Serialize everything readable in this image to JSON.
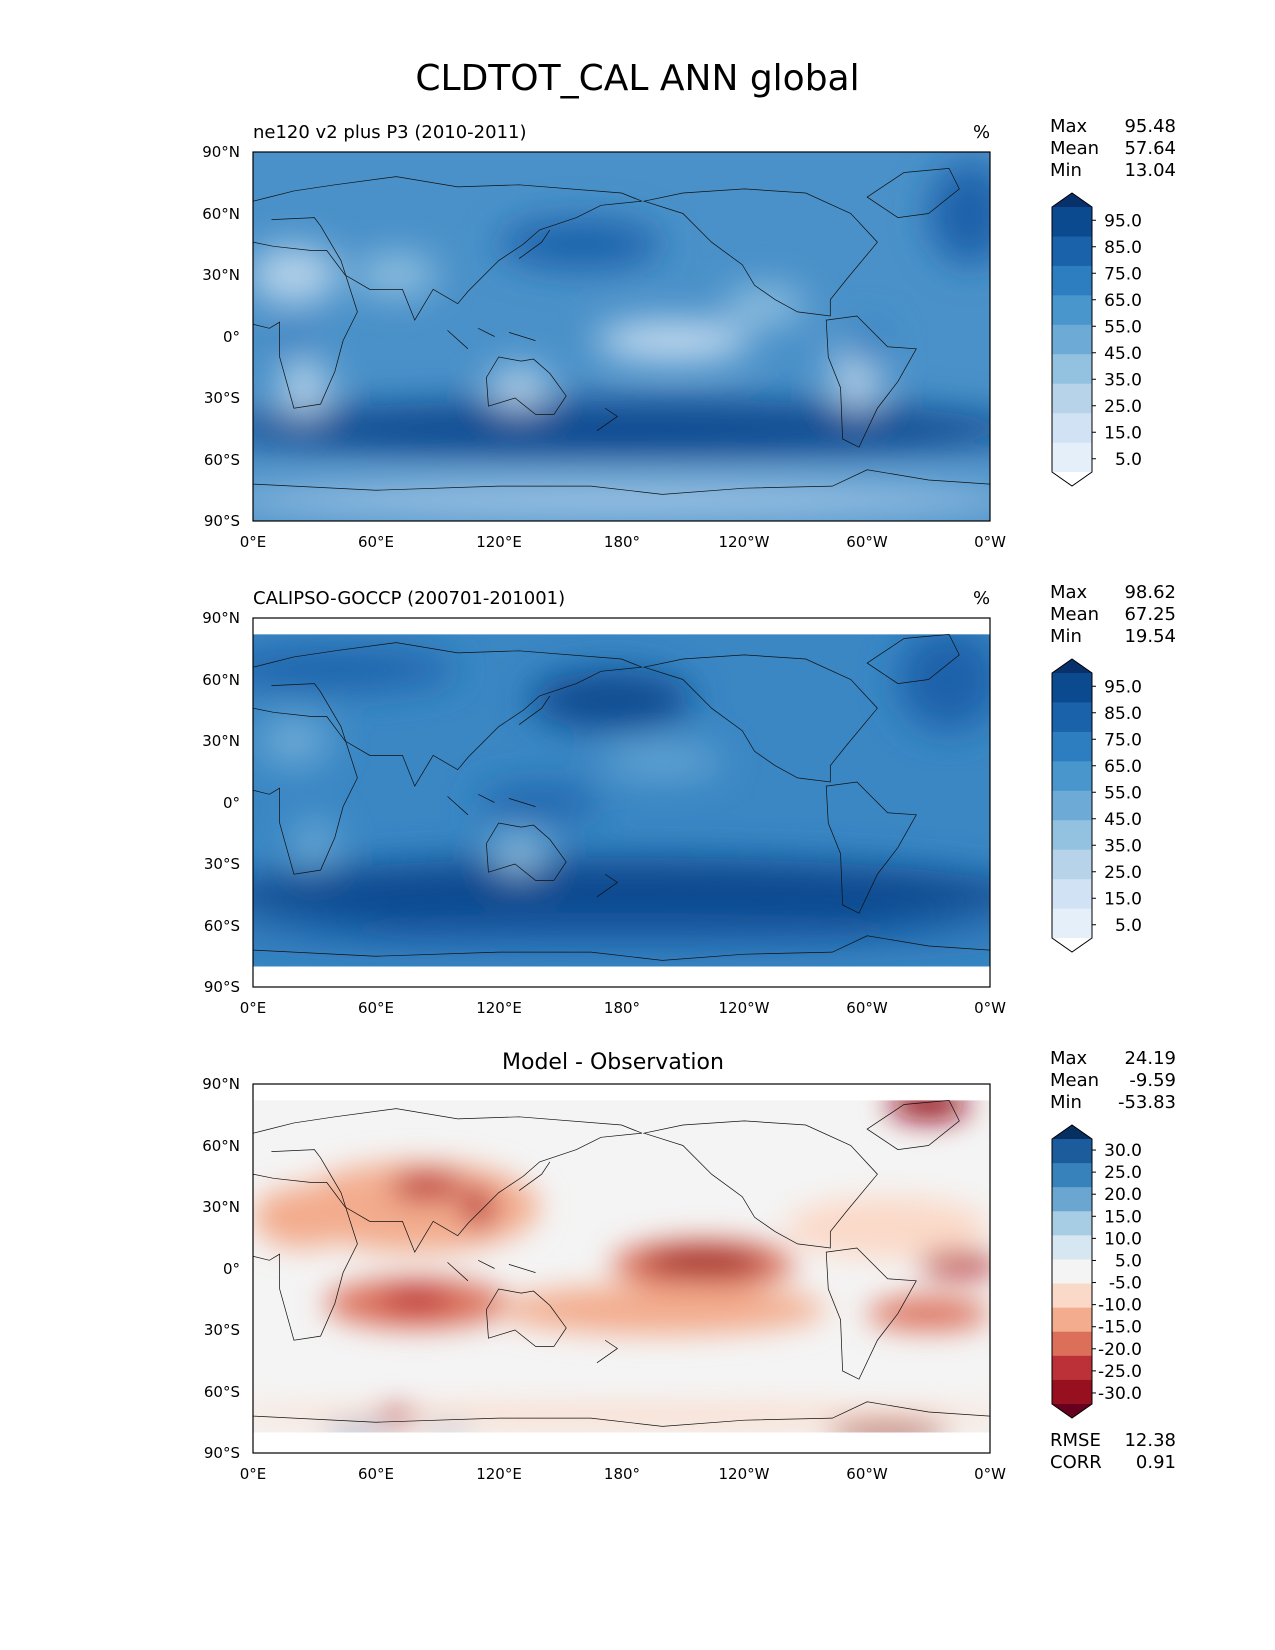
{
  "title": "CLDTOT_CAL ANN global",
  "lat_ticks": [
    "90°N",
    "60°N",
    "30°N",
    "0°",
    "30°S",
    "60°S",
    "90°S"
  ],
  "lon_ticks": [
    "0°E",
    "60°E",
    "120°E",
    "180°",
    "120°W",
    "60°W",
    "0°W"
  ],
  "panels": [
    {
      "id": "model",
      "title": "ne120 v2 plus P3 (2010-2011)",
      "units": "%",
      "stats": {
        "max_label": "Max",
        "max": "95.48",
        "mean_label": "Mean",
        "mean": "57.64",
        "min_label": "Min",
        "min": "13.04"
      },
      "colorbar_labels": [
        "95.0",
        "85.0",
        "75.0",
        "65.0",
        "55.0",
        "45.0",
        "35.0",
        "25.0",
        "15.0",
        "5.0"
      ],
      "colorbar_colors": [
        "#08306b",
        "#0b4a8f",
        "#1a62aa",
        "#2d7ec0",
        "#4896cb",
        "#6daad6",
        "#93c1e0",
        "#b6d3ea",
        "#d0e2f3",
        "#e5eff9",
        "#ffffff"
      ]
    },
    {
      "id": "obs",
      "title": "CALIPSO-GOCCP (200701-201001)",
      "units": "%",
      "stats": {
        "max_label": "Max",
        "max": "98.62",
        "mean_label": "Mean",
        "mean": "67.25",
        "min_label": "Min",
        "min": "19.54"
      },
      "colorbar_labels": [
        "95.0",
        "85.0",
        "75.0",
        "65.0",
        "55.0",
        "45.0",
        "35.0",
        "25.0",
        "15.0",
        "5.0"
      ],
      "colorbar_colors": [
        "#08306b",
        "#0b4a8f",
        "#1a62aa",
        "#2d7ec0",
        "#4896cb",
        "#6daad6",
        "#93c1e0",
        "#b6d3ea",
        "#d0e2f3",
        "#e5eff9",
        "#ffffff"
      ]
    },
    {
      "id": "diff",
      "title": "Model - Observation",
      "units": "",
      "stats": {
        "max_label": "Max",
        "max": "24.19",
        "mean_label": "Mean",
        "mean": "-9.59",
        "min_label": "Min",
        "min": "-53.83"
      },
      "colorbar_labels": [
        "30.0",
        "25.0",
        "20.0",
        "15.0",
        "10.0",
        "5.0",
        "-5.0",
        "-10.0",
        "-15.0",
        "-20.0",
        "-25.0",
        "-30.0"
      ],
      "colorbar_colors": [
        "#053061",
        "#1c5c9c",
        "#3782ba",
        "#6aa6cf",
        "#a6cde3",
        "#d6e7f1",
        "#f4f4f4",
        "#fbd9c8",
        "#f3ac8d",
        "#dc6f5a",
        "#bc3138",
        "#96101f",
        "#67001f"
      ],
      "rmse_label": "RMSE",
      "rmse": "12.38",
      "corr_label": "CORR",
      "corr": "0.91"
    }
  ]
}
